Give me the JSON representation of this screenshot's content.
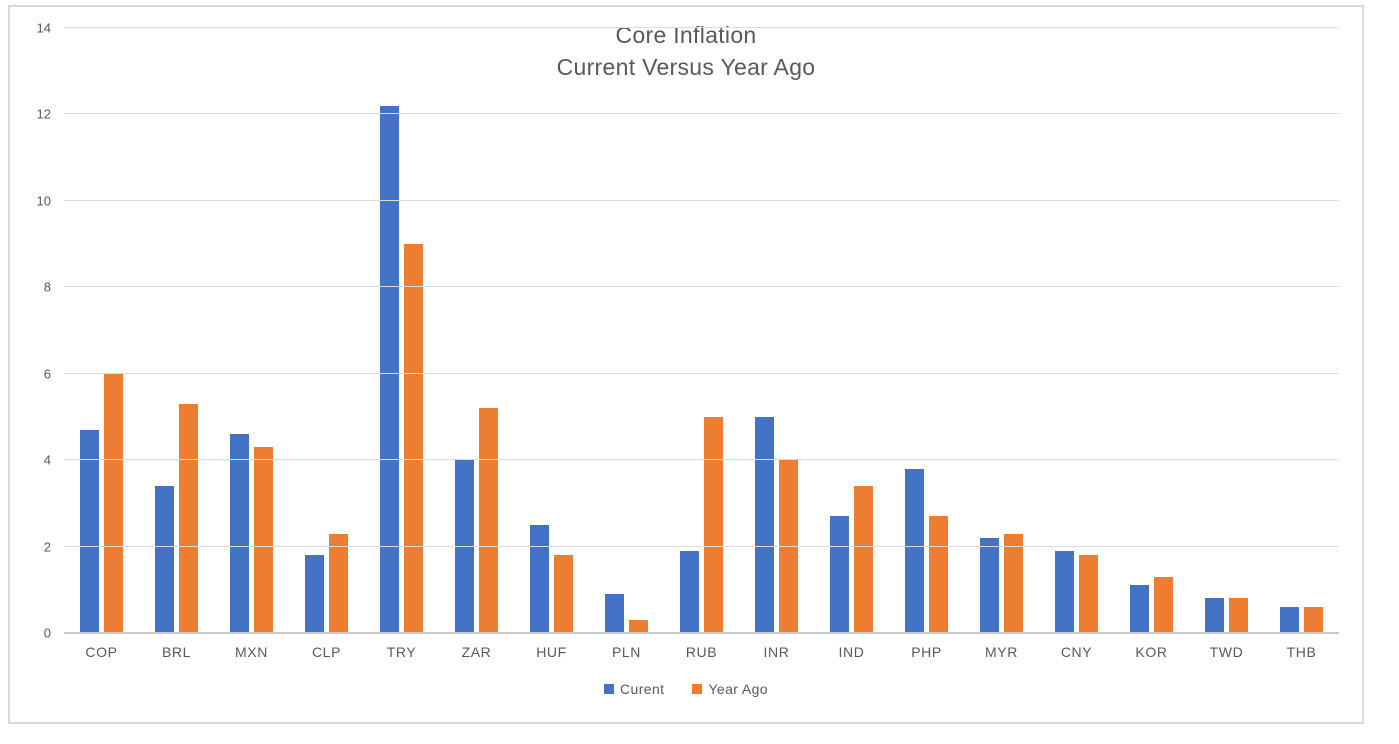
{
  "chart_data": {
    "type": "bar",
    "title": "Core Inflation",
    "subtitle": "Current Versus Year Ago",
    "categories": [
      "COP",
      "BRL",
      "MXN",
      "CLP",
      "TRY",
      "ZAR",
      "HUF",
      "PLN",
      "RUB",
      "INR",
      "IND",
      "PHP",
      "MYR",
      "CNY",
      "KOR",
      "TWD",
      "THB"
    ],
    "series": [
      {
        "name": "Curent",
        "color": "#4472C4",
        "values": [
          4.7,
          3.4,
          4.6,
          1.8,
          12.2,
          4.0,
          2.5,
          0.9,
          1.9,
          5.0,
          2.7,
          3.8,
          2.2,
          1.9,
          1.1,
          0.8,
          0.6
        ]
      },
      {
        "name": "Year Ago",
        "color": "#ED7D31",
        "values": [
          6.0,
          5.3,
          4.3,
          2.3,
          9.0,
          5.2,
          1.8,
          0.3,
          5.0,
          4.0,
          3.4,
          2.7,
          2.3,
          1.8,
          1.3,
          0.8,
          0.6
        ]
      }
    ],
    "xlabel": "",
    "ylabel": "",
    "ylim": [
      0,
      14
    ],
    "yticks": [
      0,
      2,
      4,
      6,
      8,
      10,
      12,
      14
    ],
    "grid": "horizontal",
    "legend_position": "bottom",
    "text_color": "#595959",
    "gridline_color": "#dcdcdc",
    "axis_line_color": "#c9c9c9",
    "frame_border_color": "#d9d9d9"
  }
}
